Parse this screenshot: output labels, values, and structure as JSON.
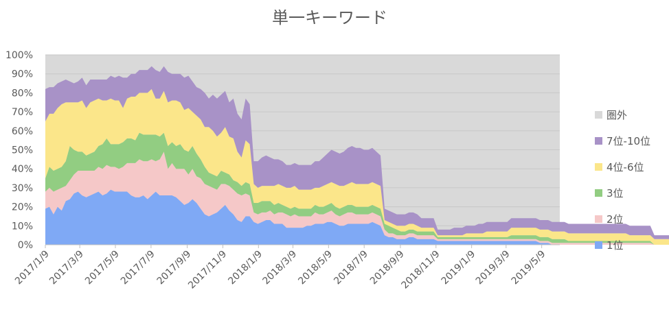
{
  "chart_data": {
    "type": "area",
    "stacked": true,
    "title": "単一キーワード",
    "xlabel": "",
    "ylabel": "",
    "ylim": [
      0,
      100
    ],
    "y_unit": "%",
    "yticks": [
      "0%",
      "10%",
      "20%",
      "30%",
      "40%",
      "50%",
      "60%",
      "70%",
      "80%",
      "90%",
      "100%"
    ],
    "xticks": [
      "2017/1/9",
      "2017/3/9",
      "2017/5/9",
      "2017/7/9",
      "2017/9/9",
      "2017/11/9",
      "2018/1/9",
      "2018/3/9",
      "2018/5/9",
      "2018/7/9",
      "2018/9/9",
      "2018/11/9",
      "2019/1/9",
      "2019/3/9",
      "2019/5/9"
    ],
    "x_start": "2017/1/9",
    "x_end": "2019/6/9",
    "x_step_days": 7,
    "grid": true,
    "legend_position": "right",
    "series": [
      {
        "name": "1位",
        "color": "#7fa9f5",
        "values": [
          19,
          20,
          16,
          20,
          18,
          23,
          24,
          27,
          28,
          26,
          25,
          26,
          27,
          28,
          26,
          27,
          29,
          28,
          28,
          28,
          28,
          26,
          25,
          25,
          26,
          24,
          26,
          28,
          26,
          26,
          26,
          26,
          25,
          23,
          21,
          22,
          24,
          22,
          19,
          16,
          15,
          16,
          17,
          19,
          21,
          18,
          16,
          13,
          12,
          15,
          15,
          12,
          11,
          12,
          13,
          13,
          11,
          11,
          11,
          9,
          9,
          9,
          9,
          9,
          10,
          10,
          11,
          11,
          11,
          12,
          12,
          11,
          10,
          10,
          11,
          11,
          11,
          11,
          11,
          11,
          12,
          11,
          10,
          5,
          4,
          4,
          3,
          3,
          3,
          4,
          4,
          3,
          3,
          3,
          3,
          3,
          2,
          2,
          2,
          2,
          2,
          2,
          2,
          2,
          2,
          2,
          2,
          2,
          2,
          2,
          2,
          2,
          2,
          2,
          2,
          2,
          2,
          2,
          2,
          2,
          2,
          1,
          1,
          1,
          0,
          0,
          0,
          0,
          0,
          0,
          0,
          0,
          0,
          0,
          0,
          0,
          0,
          0,
          0,
          0,
          0,
          0,
          0,
          0,
          0,
          0,
          0,
          0,
          0,
          0,
          0,
          0,
          0,
          0,
          0,
          0,
          0,
          0,
          0
        ]
      },
      {
        "name": "2位",
        "color": "#f5c8c8",
        "values": [
          9,
          10,
          12,
          9,
          12,
          8,
          10,
          10,
          11,
          13,
          14,
          13,
          12,
          13,
          14,
          15,
          12,
          13,
          12,
          13,
          15,
          17,
          18,
          20,
          18,
          20,
          19,
          16,
          19,
          23,
          14,
          17,
          15,
          17,
          19,
          15,
          16,
          14,
          16,
          16,
          16,
          14,
          12,
          13,
          11,
          13,
          13,
          14,
          14,
          12,
          11,
          5,
          5,
          5,
          4,
          5,
          5,
          6,
          6,
          7,
          6,
          7,
          6,
          6,
          5,
          5,
          6,
          5,
          5,
          5,
          6,
          5,
          5,
          6,
          6,
          6,
          5,
          5,
          5,
          5,
          5,
          5,
          5,
          3,
          2,
          2,
          2,
          2,
          2,
          2,
          2,
          2,
          2,
          2,
          2,
          2,
          1,
          1,
          1,
          1,
          1,
          1,
          1,
          1,
          1,
          1,
          1,
          1,
          1,
          1,
          1,
          1,
          1,
          1,
          1,
          1,
          1,
          1,
          1,
          1,
          1,
          1,
          1,
          1,
          1,
          1,
          1,
          1,
          1,
          1,
          1,
          1,
          1,
          1,
          1,
          1,
          1,
          1,
          1,
          1,
          1,
          1,
          1,
          1,
          1,
          1,
          1,
          1,
          1,
          0,
          0,
          0,
          0,
          0,
          0,
          0,
          0,
          0,
          0
        ]
      },
      {
        "name": "3位",
        "color": "#92cd82",
        "values": [
          7,
          11,
          11,
          11,
          11,
          13,
          18,
          13,
          10,
          10,
          8,
          9,
          10,
          11,
          13,
          14,
          12,
          12,
          13,
          13,
          13,
          13,
          12,
          14,
          14,
          14,
          13,
          14,
          12,
          10,
          12,
          11,
          12,
          13,
          10,
          12,
          12,
          12,
          10,
          9,
          7,
          7,
          7,
          7,
          6,
          6,
          5,
          6,
          5,
          6,
          6,
          5,
          6,
          6,
          6,
          5,
          5,
          5,
          4,
          4,
          4,
          4,
          4,
          4,
          4,
          4,
          4,
          4,
          4,
          4,
          4,
          4,
          4,
          4,
          4,
          4,
          4,
          4,
          4,
          4,
          4,
          4,
          4,
          3,
          4,
          3,
          3,
          2,
          2,
          2,
          2,
          2,
          2,
          2,
          2,
          2,
          1,
          1,
          1,
          1,
          1,
          1,
          1,
          1,
          1,
          1,
          1,
          1,
          1,
          1,
          1,
          1,
          1,
          1,
          2,
          2,
          2,
          2,
          2,
          2,
          2,
          2,
          2,
          2,
          2,
          2,
          2,
          2,
          1,
          1,
          1,
          1,
          1,
          1,
          1,
          1,
          1,
          1,
          1,
          1,
          1,
          1,
          1,
          1,
          1,
          1,
          1,
          1,
          1,
          0,
          0,
          0,
          0,
          0,
          0,
          0,
          0,
          0,
          0
        ]
      },
      {
        "name": "4位-6位",
        "color": "#fbe68a",
        "values": [
          30,
          28,
          30,
          32,
          33,
          31,
          23,
          25,
          26,
          27,
          25,
          27,
          27,
          25,
          23,
          20,
          24,
          23,
          23,
          18,
          21,
          22,
          23,
          21,
          22,
          22,
          24,
          19,
          20,
          22,
          23,
          22,
          24,
          22,
          21,
          23,
          18,
          20,
          21,
          21,
          24,
          23,
          21,
          20,
          24,
          20,
          22,
          16,
          15,
          22,
          21,
          10,
          8,
          8,
          8,
          8,
          10,
          10,
          10,
          10,
          11,
          11,
          10,
          10,
          10,
          10,
          9,
          10,
          11,
          11,
          11,
          12,
          12,
          11,
          11,
          12,
          12,
          12,
          12,
          12,
          12,
          12,
          12,
          2,
          2,
          2,
          2,
          3,
          3,
          3,
          3,
          3,
          2,
          2,
          2,
          2,
          1,
          1,
          1,
          1,
          1,
          1,
          1,
          2,
          2,
          2,
          2,
          2,
          3,
          3,
          3,
          3,
          3,
          3,
          4,
          4,
          4,
          4,
          4,
          4,
          4,
          4,
          4,
          4,
          4,
          4,
          4,
          4,
          4,
          4,
          4,
          4,
          4,
          4,
          4,
          4,
          4,
          4,
          4,
          4,
          4,
          4,
          4,
          3,
          3,
          3,
          3,
          3,
          3,
          3,
          3,
          3,
          3,
          3,
          3,
          3,
          2,
          2,
          2
        ]
      },
      {
        "name": "7位-10位",
        "color": "#a892c7",
        "values": [
          17,
          14,
          14,
          13,
          12,
          12,
          11,
          10,
          11,
          12,
          12,
          12,
          11,
          10,
          11,
          11,
          12,
          12,
          13,
          16,
          11,
          12,
          12,
          12,
          12,
          12,
          12,
          15,
          14,
          13,
          16,
          14,
          14,
          15,
          17,
          17,
          16,
          15,
          16,
          18,
          15,
          19,
          20,
          20,
          19,
          18,
          21,
          20,
          20,
          22,
          21,
          12,
          14,
          15,
          16,
          15,
          14,
          13,
          13,
          12,
          12,
          12,
          13,
          13,
          13,
          13,
          14,
          14,
          15,
          16,
          17,
          17,
          17,
          18,
          19,
          19,
          19,
          19,
          18,
          18,
          18,
          17,
          16,
          6,
          6,
          6,
          6,
          6,
          6,
          6,
          6,
          6,
          5,
          5,
          5,
          5,
          3,
          3,
          3,
          3,
          4,
          4,
          4,
          4,
          4,
          4,
          5,
          5,
          5,
          5,
          5,
          5,
          5,
          5,
          5,
          5,
          5,
          5,
          5,
          5,
          5,
          5,
          5,
          5,
          5,
          5,
          5,
          5,
          5,
          5,
          5,
          5,
          5,
          5,
          5,
          5,
          5,
          5,
          5,
          5,
          5,
          5,
          5,
          5,
          5,
          5,
          5,
          5,
          5,
          2,
          2,
          2,
          2,
          2,
          2,
          2,
          2,
          2,
          2
        ]
      },
      {
        "name": "圏外",
        "color": "#d9d9d9",
        "values": []
      }
    ]
  }
}
